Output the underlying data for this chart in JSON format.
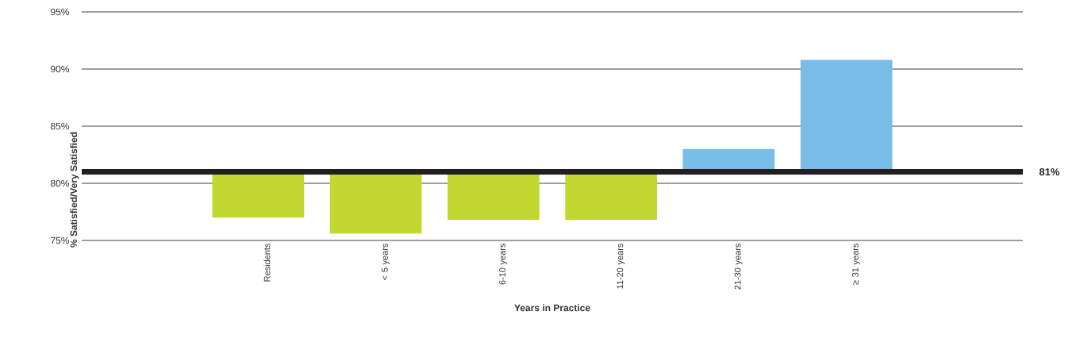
{
  "chart_data": {
    "type": "bar",
    "xlabel": "Years in Practice",
    "ylabel": "% Satisfied/Very Satisfied",
    "categories": [
      null,
      "Residents",
      "< 5 years",
      "6-10 years",
      "11-20 years",
      "21-30 years",
      "≥ 31 years",
      null
    ],
    "base": [
      null,
      81,
      81,
      81,
      81,
      81,
      81,
      null
    ],
    "values": [
      null,
      -4.0,
      -5.4,
      -4.2,
      -4.2,
      2.0,
      9.8,
      null
    ],
    "colors": [
      null,
      "#c2d72f",
      "#c2d72f",
      "#c2d72f",
      "#c2d72f",
      "#79bce7",
      "#79bce7",
      null
    ],
    "ylim": [
      75,
      95
    ],
    "yticks": [
      {
        "value": 75,
        "label": "75%"
      },
      {
        "value": 80,
        "label": "80%"
      },
      {
        "value": 85,
        "label": "85%"
      },
      {
        "value": 90,
        "label": "90%"
      },
      {
        "value": 95,
        "label": "95%"
      }
    ],
    "grid": "y",
    "ref_lines": [
      {
        "axis": "y",
        "value": 81,
        "label": "81%",
        "color": "#231f20"
      }
    ]
  }
}
